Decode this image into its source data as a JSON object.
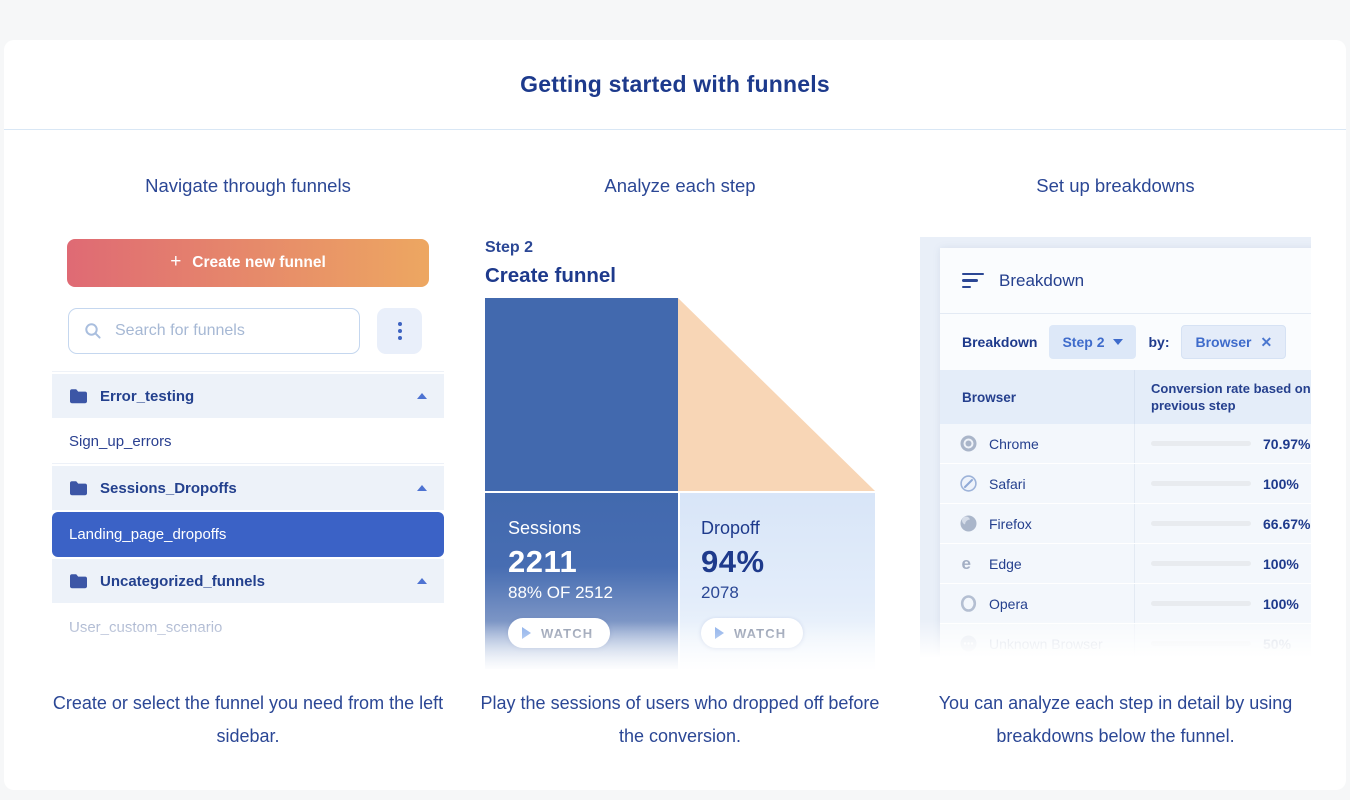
{
  "page": {
    "title": "Getting started with funnels"
  },
  "colors": {
    "accent_blue": "#3b62c6",
    "navy_text": "#1e3a8c",
    "button_gradient_start": "#df6a74",
    "button_gradient_end": "#eda761",
    "funnel_blue": "#4269ae",
    "funnel_peach": "#f8d6b6",
    "bar_fill": "#5a8dd6"
  },
  "navigate": {
    "heading": "Navigate through funnels",
    "create_button": {
      "plus": "+",
      "label": "Create new funnel"
    },
    "search": {
      "placeholder": "Search for funnels"
    },
    "items": [
      {
        "type": "folder",
        "label": "Error_testing"
      },
      {
        "type": "funnel",
        "label": "Sign_up_errors"
      },
      {
        "type": "folder",
        "label": "Sessions_Dropoffs"
      },
      {
        "type": "funnel",
        "label": "Landing_page_dropoffs",
        "state": "selected"
      },
      {
        "type": "folder",
        "label": "Uncategorized_funnels"
      },
      {
        "type": "funnel",
        "label": "User_custom_scenario",
        "state": "faded"
      }
    ],
    "caption": "Create or select the funnel you need from the left sidebar."
  },
  "analyze": {
    "heading": "Analyze each step",
    "step_label": "Step 2",
    "step_name": "Create funnel",
    "sessions": {
      "label": "Sessions",
      "value": "2211",
      "sub": "88% OF 2512",
      "watch": "WATCH"
    },
    "dropoff": {
      "label": "Dropoff",
      "value": "94%",
      "sub": "2078",
      "watch": "WATCH"
    },
    "caption": "Play the sessions of users who dropped off before the conversion."
  },
  "breakdown": {
    "heading": "Set up breakdowns",
    "panel_title": "Breakdown",
    "filter": {
      "label": "Breakdown",
      "step_chip": "Step 2",
      "by_label": "by:",
      "dimension_chip": "Browser"
    },
    "table": {
      "col1_header": "Browser",
      "col2_header": "Conversion rate based on the previous step",
      "rows": [
        {
          "browser": "Chrome",
          "rate_label": "70.97%",
          "rate": 70.97
        },
        {
          "browser": "Safari",
          "rate_label": "100%",
          "rate": 100
        },
        {
          "browser": "Firefox",
          "rate_label": "66.67%",
          "rate": 66.67
        },
        {
          "browser": "Edge",
          "rate_label": "100%",
          "rate": 100
        },
        {
          "browser": "Opera",
          "rate_label": "100%",
          "rate": 100
        },
        {
          "browser": "Unknown Browser",
          "rate_label": "50%",
          "rate": 50
        }
      ]
    },
    "caption": "You can analyze each step in detail by using breakdowns below the funnel."
  }
}
